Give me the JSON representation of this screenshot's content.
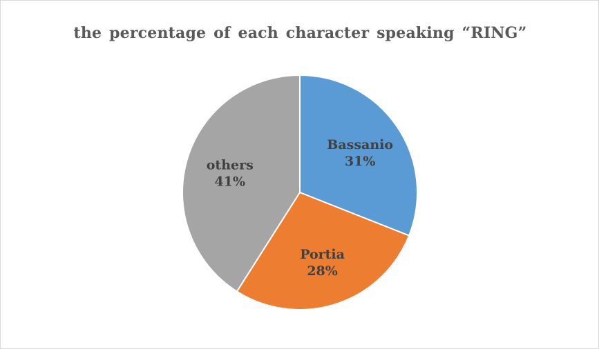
{
  "chart_data": {
    "type": "pie",
    "title": "the percentage of each character speaking “RING”",
    "categories": [
      "Bassanio",
      "Portia",
      "others"
    ],
    "values": [
      31,
      28,
      41
    ],
    "percent_labels": [
      "31%",
      "28%",
      "41%"
    ],
    "colors": [
      "#5b9bd5",
      "#ed7d31",
      "#a5a5a5"
    ],
    "legend": "none",
    "data_labels": "inside"
  }
}
